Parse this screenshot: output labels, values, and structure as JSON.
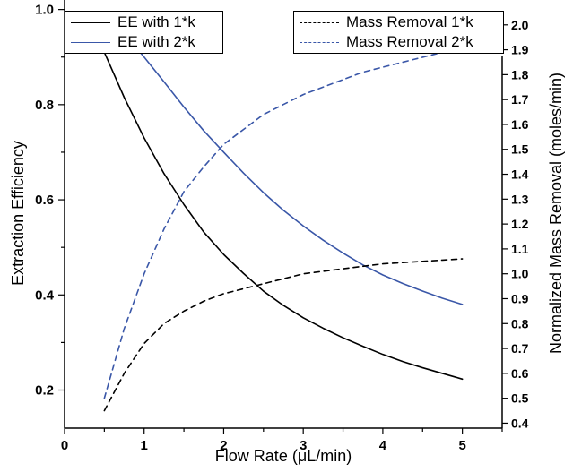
{
  "chart_data": {
    "type": "line",
    "title": "",
    "xlabel": "Flow Rate (μL/min)",
    "ylabel_left": "Extraction Efficiency",
    "ylabel_right": "Normalized Mass Removal (moles/min)",
    "xlim": [
      0,
      5.5
    ],
    "ylim_left": [
      0.12,
      1.02
    ],
    "ylim_right": [
      0.38,
      2.1
    ],
    "x_ticks": [
      0,
      1,
      2,
      3,
      4,
      5
    ],
    "y_left_ticks": [
      0.2,
      0.4,
      0.6,
      0.8,
      1.0
    ],
    "y_left_tick_labels": [
      "0.2",
      "0.4",
      "0.6",
      "0.8",
      "1.0"
    ],
    "y_right_ticks": [
      0.4,
      0.5,
      0.6,
      0.7,
      0.8,
      0.9,
      1.0,
      1.1,
      1.2,
      1.3,
      1.4,
      1.5,
      1.6,
      1.7,
      1.8,
      1.9,
      2.0
    ],
    "y_right_tick_labels": [
      "0.4",
      "0.5",
      "0.6",
      "0.7",
      "0.8",
      "0.9",
      "1.0",
      "1.1",
      "1.2",
      "1.3",
      "1.4",
      "1.5",
      "1.6",
      "1.7",
      "1.8",
      "1.9",
      "2.0"
    ],
    "grid": false,
    "legend": [
      {
        "position": "top-left",
        "entries": [
          "EE with 1*k",
          "EE with 2*k"
        ]
      },
      {
        "position": "top-right",
        "entries": [
          "Mass Removal 1*k",
          "Mass Removal 2*k"
        ]
      }
    ],
    "series": [
      {
        "name": "EE with 1*k",
        "axis": "left",
        "style": "solid",
        "color": "#000000",
        "x": [
          0.5,
          0.75,
          1.0,
          1.25,
          1.5,
          1.75,
          2.0,
          2.25,
          2.5,
          2.75,
          3.0,
          3.25,
          3.5,
          3.75,
          4.0,
          4.25,
          4.5,
          4.75,
          5.0
        ],
        "values": [
          0.91,
          0.815,
          0.73,
          0.655,
          0.59,
          0.532,
          0.485,
          0.445,
          0.408,
          0.378,
          0.352,
          0.33,
          0.31,
          0.292,
          0.275,
          0.26,
          0.247,
          0.235,
          0.223
        ]
      },
      {
        "name": "EE with 2*k",
        "axis": "left",
        "style": "solid",
        "color": "#3a57a8",
        "x": [
          0.5,
          0.75,
          1.0,
          1.25,
          1.5,
          1.75,
          2.0,
          2.25,
          2.5,
          2.75,
          3.0,
          3.25,
          3.5,
          3.75,
          4.0,
          4.25,
          4.5,
          4.75,
          5.0
        ],
        "values": [
          0.992,
          0.95,
          0.9,
          0.848,
          0.795,
          0.745,
          0.7,
          0.656,
          0.615,
          0.578,
          0.545,
          0.515,
          0.488,
          0.463,
          0.442,
          0.424,
          0.408,
          0.393,
          0.38
        ]
      },
      {
        "name": "Mass Removal 1*k",
        "axis": "right",
        "style": "dashed",
        "color": "#000000",
        "x": [
          0.5,
          0.75,
          1.0,
          1.25,
          1.5,
          1.75,
          2.0,
          2.25,
          2.5,
          2.75,
          3.0,
          3.25,
          3.5,
          3.75,
          4.0,
          4.25,
          4.5,
          4.75,
          5.0
        ],
        "values": [
          0.45,
          0.6,
          0.72,
          0.8,
          0.85,
          0.89,
          0.92,
          0.94,
          0.96,
          0.98,
          1.0,
          1.01,
          1.02,
          1.03,
          1.04,
          1.045,
          1.05,
          1.055,
          1.06
        ]
      },
      {
        "name": "Mass Removal 2*k",
        "axis": "right",
        "style": "dashed",
        "color": "#3a57a8",
        "x": [
          0.5,
          0.75,
          1.0,
          1.25,
          1.5,
          1.75,
          2.0,
          2.25,
          2.5,
          2.75,
          3.0,
          3.25,
          3.5,
          3.75,
          4.0,
          4.25,
          4.5,
          4.75,
          5.0
        ],
        "values": [
          0.5,
          0.78,
          1.0,
          1.18,
          1.33,
          1.43,
          1.52,
          1.58,
          1.64,
          1.68,
          1.72,
          1.75,
          1.78,
          1.81,
          1.83,
          1.85,
          1.87,
          1.89,
          1.91
        ]
      }
    ]
  },
  "legend_left": {
    "entries": [
      {
        "label": "EE with 1*k",
        "color": "#000000",
        "style": "solid"
      },
      {
        "label": "EE with 2*k",
        "color": "#3a57a8",
        "style": "solid"
      }
    ]
  },
  "legend_right": {
    "entries": [
      {
        "label": "Mass Removal 1*k",
        "color": "#000000",
        "style": "dashed"
      },
      {
        "label": "Mass Removal 2*k",
        "color": "#3a57a8",
        "style": "dashed"
      }
    ]
  }
}
